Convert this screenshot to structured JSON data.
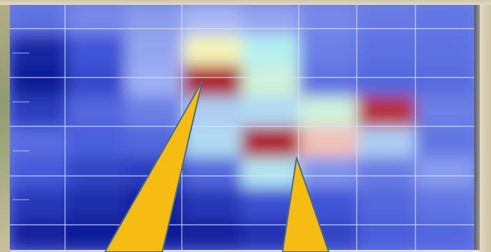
{
  "colors": {
    "low": "#0a1690",
    "mid_low": "#3f55d8",
    "base": "#6c7fe6",
    "mid": "#a8b8f4",
    "cyan": "#b6f0f0",
    "yellow": "#f4f4b8",
    "pink": "#f0b8b8",
    "high": "#a40010",
    "grid_line": "#dfe3ff",
    "pointer_fill": "#f6bc12",
    "pointer_stroke": "#4a6a8c"
  },
  "chart_data": {
    "type": "heatmap",
    "title": "",
    "xlabel": "",
    "ylabel": "",
    "grid": true,
    "legend": "none",
    "columns": 8,
    "rows": 8,
    "value_range": [
      0,
      1
    ],
    "values": [
      [
        0.34,
        0.42,
        0.46,
        0.52,
        0.48,
        0.42,
        0.38,
        0.36
      ],
      [
        0.06,
        0.22,
        0.48,
        0.72,
        0.62,
        0.4,
        0.34,
        0.34
      ],
      [
        0.02,
        0.18,
        0.5,
        0.98,
        0.66,
        0.34,
        0.3,
        0.32
      ],
      [
        0.14,
        0.3,
        0.4,
        0.56,
        0.58,
        0.66,
        0.96,
        0.4
      ],
      [
        0.32,
        0.26,
        0.3,
        0.58,
        0.98,
        0.82,
        0.56,
        0.36
      ],
      [
        0.24,
        0.16,
        0.14,
        0.3,
        0.6,
        0.44,
        0.38,
        0.46
      ],
      [
        0.12,
        0.08,
        0.04,
        0.12,
        0.2,
        0.22,
        0.3,
        0.36
      ],
      [
        0.04,
        0.02,
        0.02,
        0.04,
        0.1,
        0.16,
        0.26,
        0.3
      ]
    ],
    "annotations": [
      {
        "type": "pointer",
        "target_cell": [
          3,
          2
        ]
      },
      {
        "type": "pointer",
        "target_cell": [
          4,
          4
        ]
      }
    ]
  }
}
